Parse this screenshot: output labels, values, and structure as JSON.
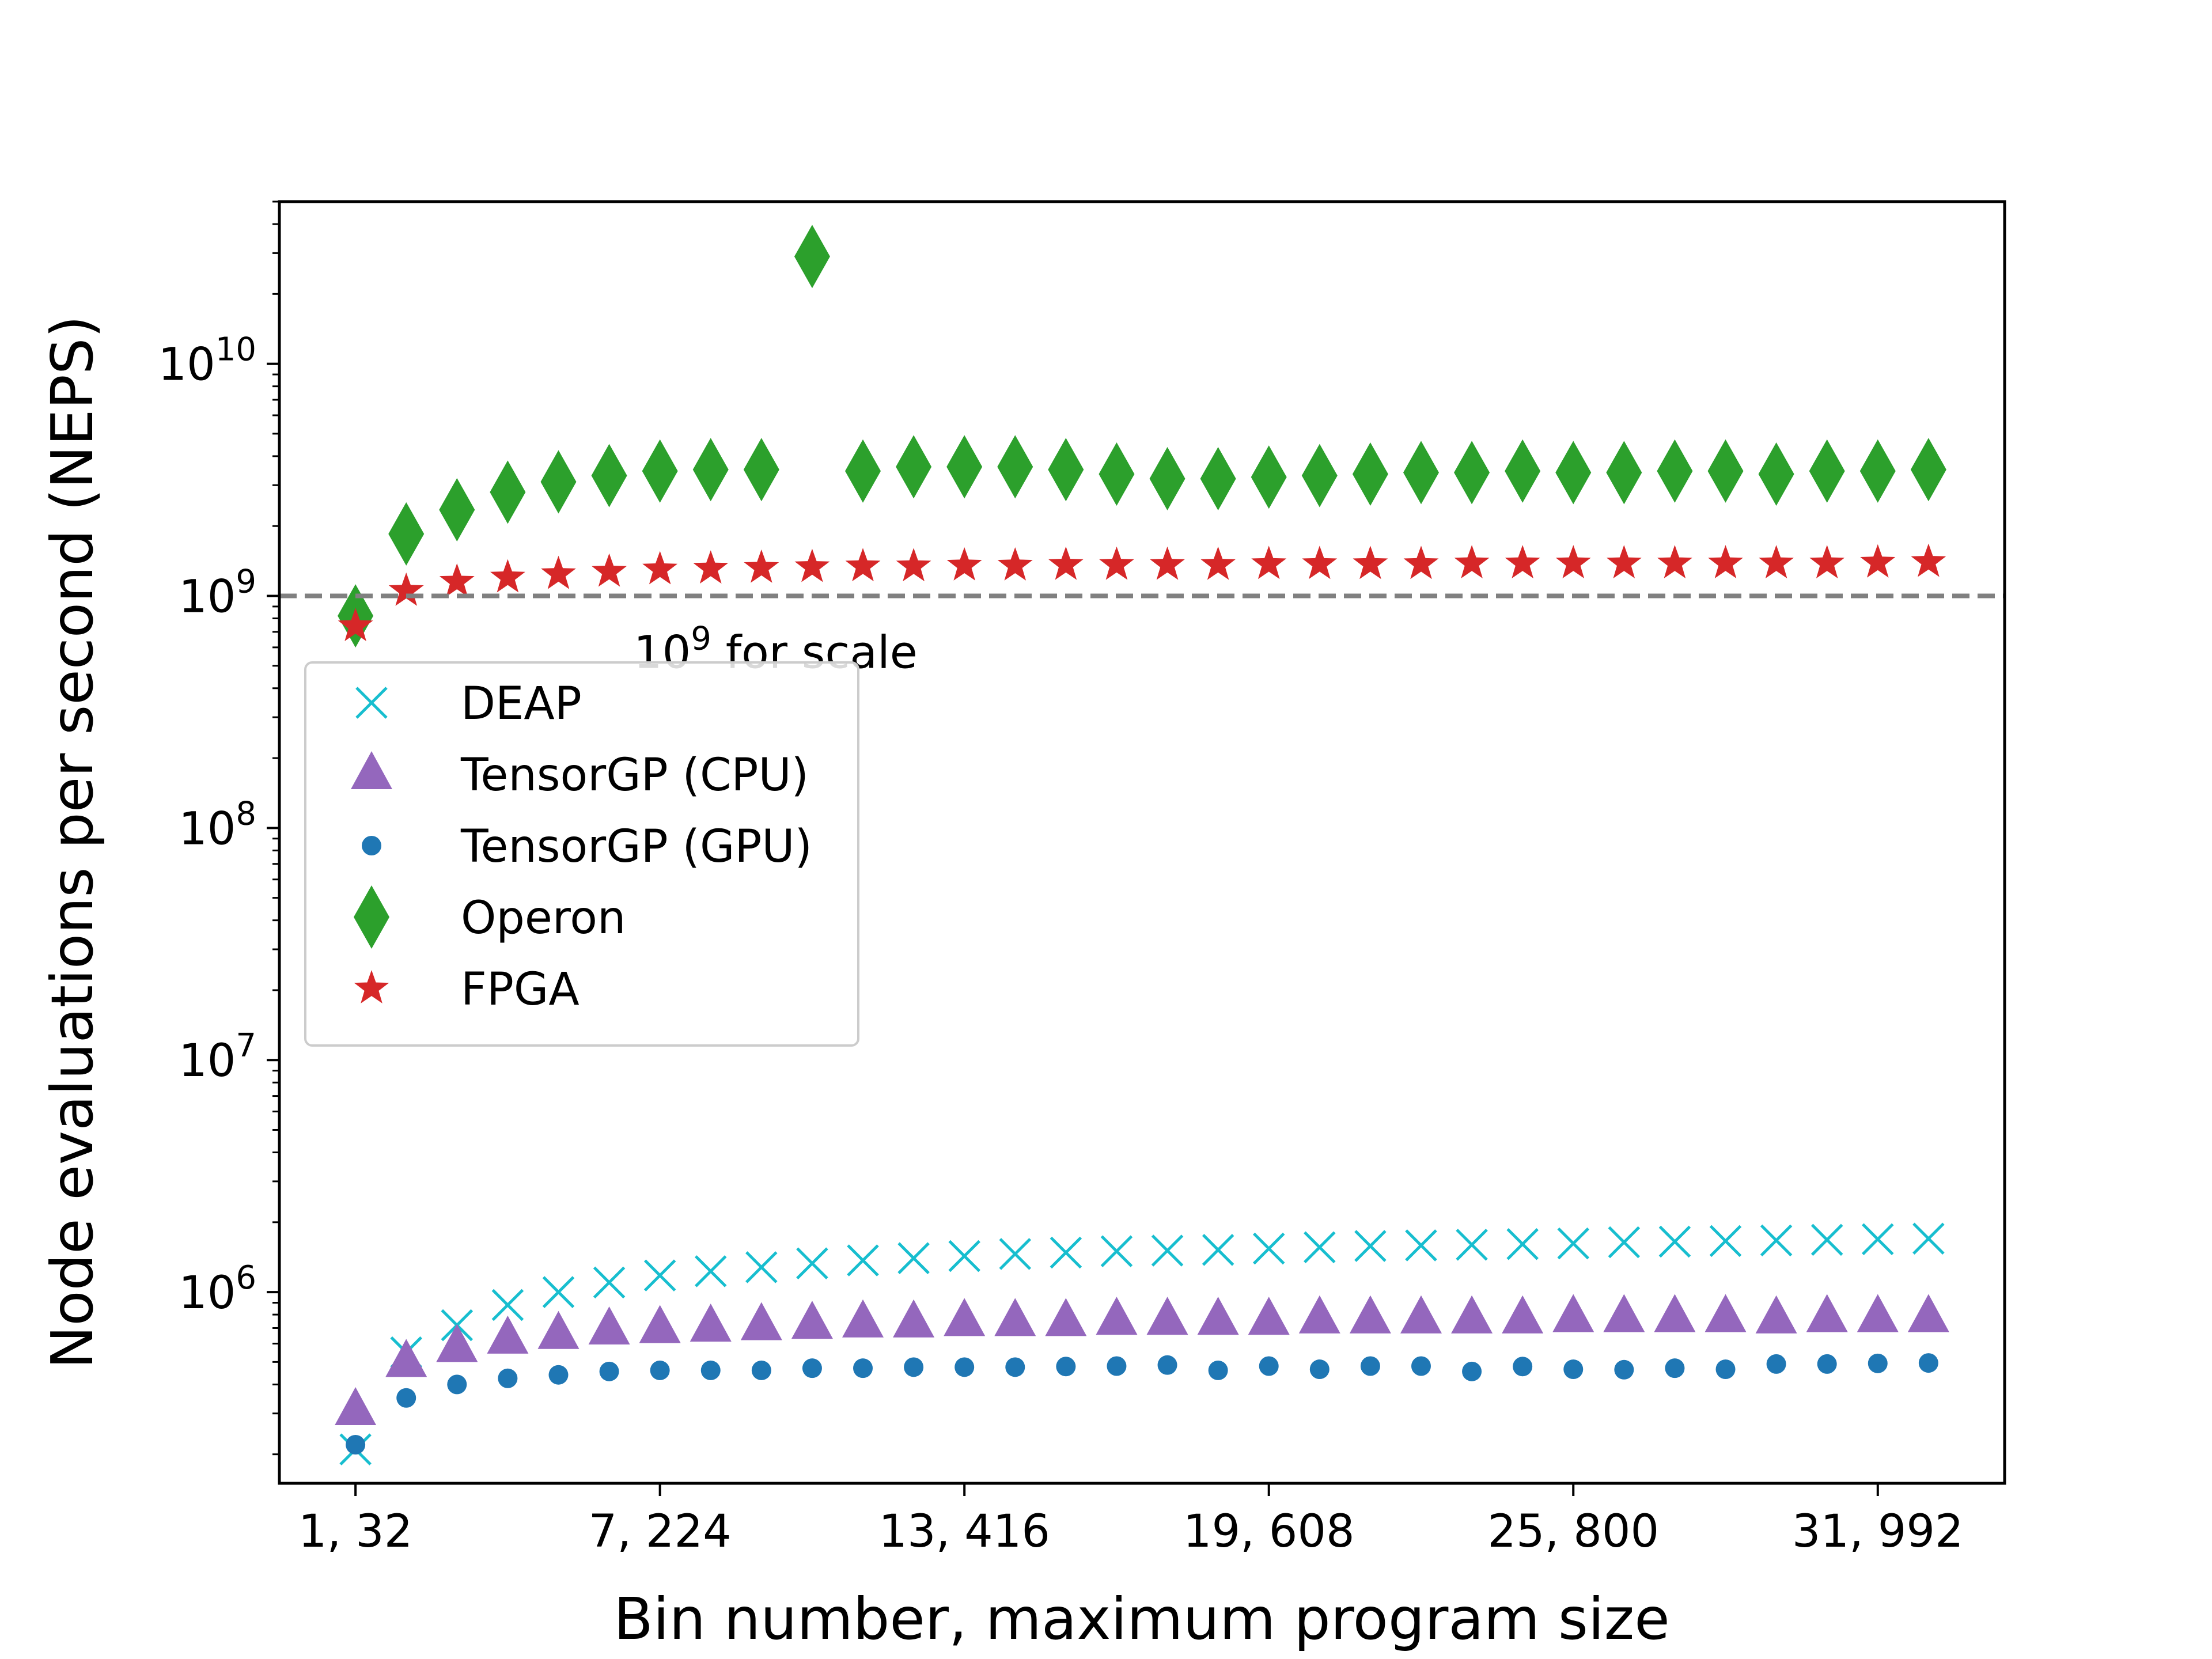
{
  "chart_data": {
    "type": "scatter",
    "xlabel": "Bin number, maximum program size",
    "ylabel": "Node evaluations per second (NEPS)",
    "yscale": "log",
    "xlim": [
      -1.5,
      32.5
    ],
    "ylim": [
      150000,
      50000000000
    ],
    "x_ticks": [
      {
        "value": 0,
        "label": "1, 32"
      },
      {
        "value": 6,
        "label": "7, 224"
      },
      {
        "value": 12,
        "label": "13, 416"
      },
      {
        "value": 18,
        "label": "19, 608"
      },
      {
        "value": 24,
        "label": "25, 800"
      },
      {
        "value": 30,
        "label": "31, 992"
      }
    ],
    "y_ticks": [
      {
        "value": 1000000,
        "base": "10",
        "exp": "6"
      },
      {
        "value": 10000000,
        "base": "10",
        "exp": "7"
      },
      {
        "value": 100000000,
        "base": "10",
        "exp": "8"
      },
      {
        "value": 1000000000,
        "base": "10",
        "exp": "9"
      },
      {
        "value": 10000000000,
        "base": "10",
        "exp": "10"
      }
    ],
    "reference_line": {
      "y": 1000000000,
      "color": "#808080",
      "label_base": "10",
      "label_exp": "9",
      "label_text": " for scale"
    },
    "legend_position": "upper-left",
    "x": [
      0,
      1,
      2,
      3,
      4,
      5,
      6,
      7,
      8,
      9,
      10,
      11,
      12,
      13,
      14,
      15,
      16,
      17,
      18,
      19,
      20,
      21,
      22,
      23,
      24,
      25,
      26,
      27,
      28,
      29,
      30,
      31
    ],
    "series": [
      {
        "name": "DEAP",
        "marker": "x",
        "color": "#17becf",
        "values": [
          210000,
          550000,
          720000,
          880000,
          1000000,
          1100000,
          1180000,
          1230000,
          1280000,
          1330000,
          1370000,
          1400000,
          1430000,
          1460000,
          1480000,
          1500000,
          1510000,
          1520000,
          1540000,
          1560000,
          1580000,
          1590000,
          1600000,
          1610000,
          1620000,
          1640000,
          1650000,
          1660000,
          1670000,
          1680000,
          1690000,
          1700000
        ]
      },
      {
        "name": "TensorGP (CPU)",
        "marker": "triangle",
        "color": "#9467bd",
        "values": [
          310000,
          500000,
          580000,
          630000,
          660000,
          690000,
          700000,
          710000,
          720000,
          730000,
          740000,
          740000,
          750000,
          750000,
          750000,
          760000,
          760000,
          760000,
          760000,
          770000,
          770000,
          770000,
          770000,
          770000,
          780000,
          780000,
          780000,
          780000,
          770000,
          780000,
          780000,
          780000
        ]
      },
      {
        "name": "TensorGP (GPU)",
        "marker": "circle",
        "color": "#1f77b4",
        "values": [
          220000,
          350000,
          400000,
          425000,
          440000,
          455000,
          460000,
          460000,
          460000,
          470000,
          470000,
          475000,
          475000,
          475000,
          478000,
          480000,
          485000,
          460000,
          480000,
          465000,
          480000,
          480000,
          455000,
          478000,
          465000,
          463000,
          470000,
          465000,
          490000,
          490000,
          493000,
          495000
        ]
      },
      {
        "name": "Operon",
        "marker": "diamond",
        "color": "#2ca02c",
        "values": [
          820000000,
          1850000000,
          2350000000,
          2800000000,
          3100000000,
          3300000000,
          3450000000,
          3500000000,
          3500000000,
          29000000000,
          3450000000,
          3600000000,
          3600000000,
          3600000000,
          3500000000,
          3350000000,
          3200000000,
          3200000000,
          3250000000,
          3300000000,
          3350000000,
          3400000000,
          3400000000,
          3450000000,
          3400000000,
          3400000000,
          3450000000,
          3450000000,
          3350000000,
          3450000000,
          3450000000,
          3500000000
        ]
      },
      {
        "name": "FPGA",
        "marker": "star",
        "color": "#d62728",
        "values": [
          740000000,
          1050000000,
          1150000000,
          1200000000,
          1240000000,
          1270000000,
          1300000000,
          1310000000,
          1320000000,
          1330000000,
          1340000000,
          1340000000,
          1350000000,
          1350000000,
          1360000000,
          1360000000,
          1360000000,
          1360000000,
          1370000000,
          1370000000,
          1370000000,
          1370000000,
          1380000000,
          1380000000,
          1380000000,
          1380000000,
          1380000000,
          1380000000,
          1380000000,
          1380000000,
          1390000000,
          1400000000
        ]
      }
    ]
  }
}
